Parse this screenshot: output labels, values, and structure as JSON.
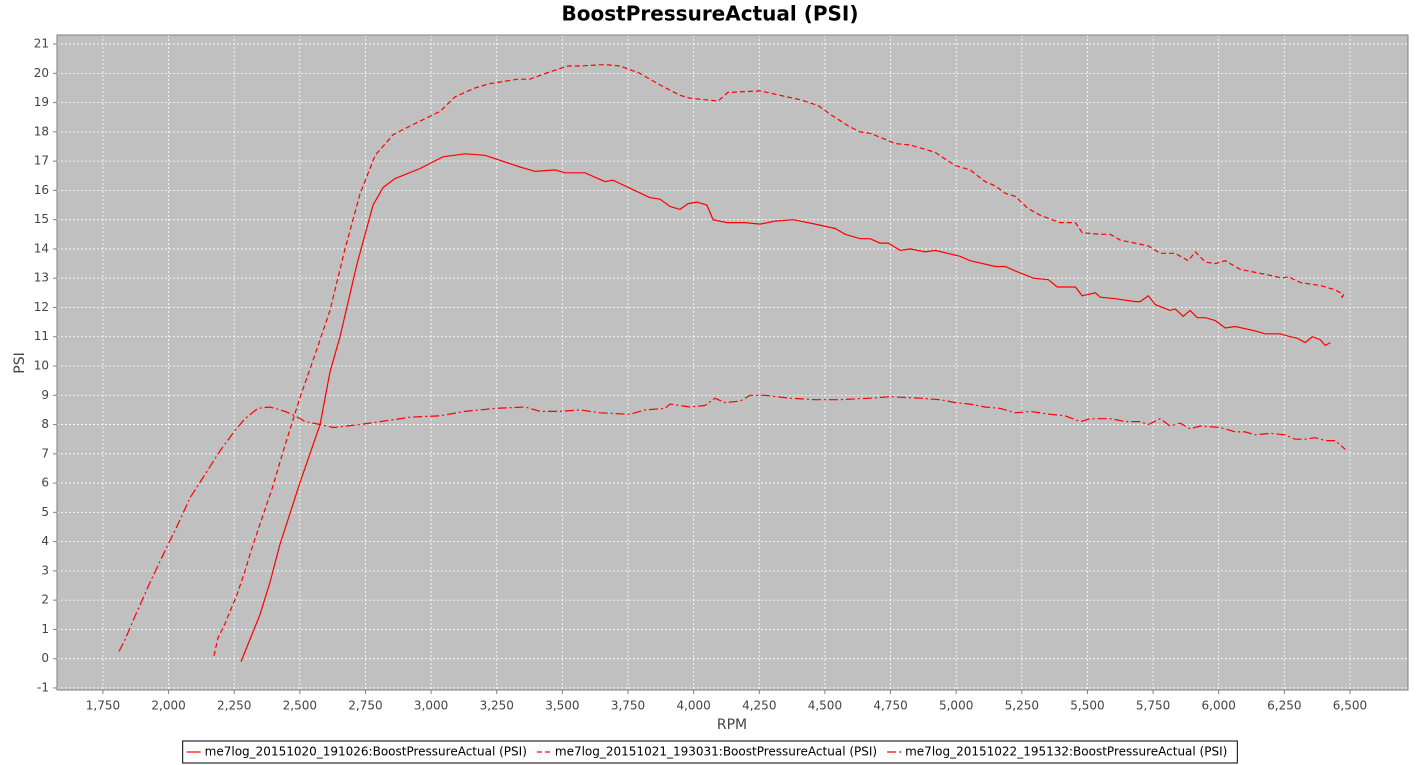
{
  "chart_data": {
    "type": "line",
    "title": "BoostPressureActual (PSI)",
    "x_label": "RPM",
    "y_label": "PSI",
    "xlim": [
      1575,
      6721
    ],
    "ylim": [
      -1.07,
      21.31
    ],
    "xticks": [
      {
        "value": 1750,
        "label": "1,750"
      },
      {
        "value": 2000,
        "label": "2,000"
      },
      {
        "value": 2250,
        "label": "2,250"
      },
      {
        "value": 2500,
        "label": "2,500"
      },
      {
        "value": 2750,
        "label": "2,750"
      },
      {
        "value": 3000,
        "label": "3,000"
      },
      {
        "value": 3250,
        "label": "3,250"
      },
      {
        "value": 3500,
        "label": "3,500"
      },
      {
        "value": 3750,
        "label": "3,750"
      },
      {
        "value": 4000,
        "label": "4,000"
      },
      {
        "value": 4250,
        "label": "4,250"
      },
      {
        "value": 4500,
        "label": "4,500"
      },
      {
        "value": 4750,
        "label": "4,750"
      },
      {
        "value": 5000,
        "label": "5,000"
      },
      {
        "value": 5250,
        "label": "5,250"
      },
      {
        "value": 5500,
        "label": "5,500"
      },
      {
        "value": 5750,
        "label": "5,750"
      },
      {
        "value": 6000,
        "label": "6,000"
      },
      {
        "value": 6250,
        "label": "6,250"
      },
      {
        "value": 6500,
        "label": "6,500"
      }
    ],
    "yticks": [
      -1,
      0,
      1,
      2,
      3,
      4,
      5,
      6,
      7,
      8,
      9,
      10,
      11,
      12,
      13,
      14,
      15,
      16,
      17,
      18,
      19,
      20,
      21
    ],
    "grid": true,
    "legend": "bottom",
    "series": [
      {
        "name": "me7log_20151020_191026:BoostPressureActual (PSI)",
        "color": "#ff0000",
        "line_style": "solid",
        "x": [
          2276,
          2348,
          2386,
          2424,
          2500,
          2577,
          2615,
          2653,
          2718,
          2779,
          2817,
          2862,
          2958,
          3045,
          3129,
          3205,
          3339,
          3396,
          3472,
          3510,
          3586,
          3662,
          3693,
          3834,
          3872,
          3910,
          3948,
          3979,
          4013,
          4050,
          4074,
          4127,
          4196,
          4253,
          4310,
          4379,
          4463,
          4539,
          4577,
          4634,
          4672,
          4710,
          4741,
          4787,
          4825,
          4882,
          4920,
          5015,
          5053,
          5149,
          5187,
          5225,
          5294,
          5351,
          5385,
          5454,
          5480,
          5530,
          5549,
          5606,
          5682,
          5701,
          5732,
          5758,
          5815,
          5834,
          5865,
          5891,
          5918,
          5949,
          5987,
          6025,
          6063,
          6139,
          6177,
          6234,
          6272,
          6299,
          6330,
          6356,
          6387,
          6406,
          6425
        ],
        "values": [
          -0.1,
          1.5,
          2.6,
          3.9,
          6.0,
          8.0,
          9.8,
          11.0,
          13.5,
          15.5,
          16.1,
          16.4,
          16.75,
          17.15,
          17.25,
          17.2,
          16.8,
          16.65,
          16.7,
          16.6,
          16.6,
          16.3,
          16.35,
          15.75,
          15.7,
          15.45,
          15.35,
          15.55,
          15.6,
          15.5,
          15.0,
          14.9,
          14.9,
          14.85,
          14.95,
          15.0,
          14.85,
          14.7,
          14.5,
          14.35,
          14.35,
          14.2,
          14.2,
          13.95,
          14.0,
          13.9,
          13.95,
          13.75,
          13.6,
          13.4,
          13.4,
          13.25,
          13.0,
          12.95,
          12.7,
          12.7,
          12.4,
          12.5,
          12.35,
          12.3,
          12.2,
          12.2,
          12.4,
          12.1,
          11.9,
          11.95,
          11.7,
          11.9,
          11.65,
          11.65,
          11.55,
          11.3,
          11.35,
          11.2,
          11.1,
          11.1,
          11.0,
          10.95,
          10.8,
          11.0,
          10.9,
          10.7,
          10.8
        ]
      },
      {
        "name": "me7log_20151021_193031:BoostPressureActual (PSI)",
        "color": "#ff0000",
        "line_style": "dashed",
        "x": [
          2173,
          2188,
          2215,
          2261,
          2291,
          2318,
          2356,
          2394,
          2444,
          2500,
          2558,
          2615,
          2672,
          2730,
          2787,
          2855,
          2920,
          2989,
          3034,
          3091,
          3167,
          3224,
          3262,
          3330,
          3376,
          3452,
          3520,
          3566,
          3662,
          3719,
          3795,
          3872,
          3948,
          3986,
          4093,
          4131,
          4253,
          4329,
          4405,
          4474,
          4520,
          4589,
          4634,
          4672,
          4729,
          4768,
          4825,
          4882,
          4920,
          4996,
          5053,
          5110,
          5149,
          5187,
          5225,
          5271,
          5320,
          5396,
          5454,
          5480,
          5549,
          5587,
          5625,
          5682,
          5732,
          5777,
          5834,
          5884,
          5911,
          5949,
          5987,
          6025,
          6082,
          6139,
          6196,
          6242,
          6265,
          6311,
          6387,
          6444,
          6463,
          6470,
          6482
        ],
        "values": [
          0.1,
          0.7,
          1.2,
          2.2,
          3.0,
          3.8,
          4.8,
          5.8,
          7.3,
          8.9,
          10.4,
          11.9,
          14.0,
          15.9,
          17.2,
          17.9,
          18.2,
          18.5,
          18.7,
          19.2,
          19.5,
          19.65,
          19.7,
          19.8,
          19.8,
          20.05,
          20.25,
          20.25,
          20.3,
          20.25,
          20.0,
          19.6,
          19.25,
          19.15,
          19.05,
          19.35,
          19.4,
          19.25,
          19.1,
          18.9,
          18.6,
          18.2,
          18.0,
          17.95,
          17.75,
          17.6,
          17.55,
          17.4,
          17.3,
          16.85,
          16.7,
          16.3,
          16.15,
          15.9,
          15.8,
          15.4,
          15.15,
          14.9,
          14.9,
          14.55,
          14.5,
          14.5,
          14.3,
          14.2,
          14.1,
          13.85,
          13.85,
          13.6,
          13.9,
          13.55,
          13.5,
          13.6,
          13.3,
          13.2,
          13.1,
          13.0,
          13.05,
          12.85,
          12.75,
          12.6,
          12.5,
          12.35,
          12.55
        ]
      },
      {
        "name": "me7log_20151022_195132:BoostPressureActual (PSI)",
        "color": "#ff0000",
        "line_style": "dashdot",
        "x": [
          1811,
          1834,
          1872,
          1929,
          1987,
          2036,
          2082,
          2139,
          2196,
          2253,
          2291,
          2340,
          2386,
          2444,
          2482,
          2520,
          2577,
          2627,
          2730,
          2844,
          2920,
          3034,
          3129,
          3243,
          3358,
          3415,
          3491,
          3566,
          3643,
          3757,
          3815,
          3891,
          3910,
          3986,
          4043,
          4081,
          4120,
          4177,
          4215,
          4272,
          4367,
          4463,
          4558,
          4672,
          4748,
          4863,
          4939,
          4996,
          5053,
          5110,
          5168,
          5225,
          5282,
          5358,
          5415,
          5473,
          5511,
          5587,
          5644,
          5701,
          5732,
          5777,
          5815,
          5853,
          5891,
          5930,
          6006,
          6063,
          6101,
          6139,
          6196,
          6253,
          6291,
          6330,
          6368,
          6406,
          6444,
          6482
        ],
        "values": [
          0.25,
          0.65,
          1.45,
          2.6,
          3.7,
          4.6,
          5.5,
          6.3,
          7.1,
          7.8,
          8.2,
          8.55,
          8.6,
          8.45,
          8.3,
          8.1,
          8.0,
          7.9,
          8.0,
          8.15,
          8.25,
          8.3,
          8.45,
          8.55,
          8.6,
          8.45,
          8.45,
          8.5,
          8.4,
          8.35,
          8.5,
          8.55,
          8.7,
          8.6,
          8.65,
          8.9,
          8.75,
          8.8,
          9.0,
          9.0,
          8.9,
          8.85,
          8.85,
          8.9,
          8.95,
          8.9,
          8.85,
          8.75,
          8.7,
          8.6,
          8.55,
          8.4,
          8.45,
          8.35,
          8.3,
          8.1,
          8.2,
          8.2,
          8.1,
          8.1,
          8.0,
          8.2,
          7.95,
          8.05,
          7.85,
          7.95,
          7.9,
          7.75,
          7.75,
          7.65,
          7.7,
          7.65,
          7.5,
          7.5,
          7.55,
          7.45,
          7.45,
          7.15
        ]
      }
    ]
  }
}
